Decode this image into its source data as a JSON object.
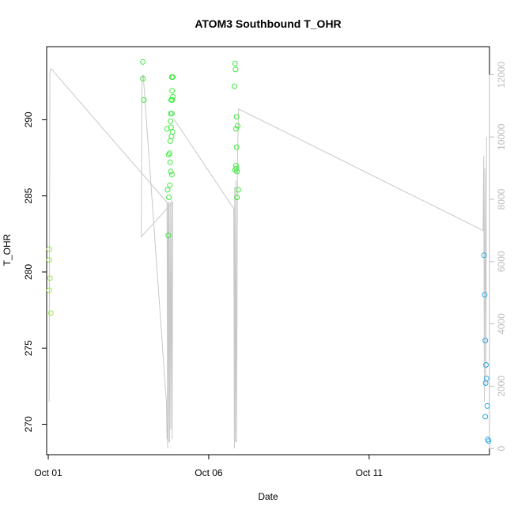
{
  "chart_data": {
    "type": "scatter",
    "title": "ATOM3 Southbound T_OHR",
    "xlabel": "Date",
    "ylabel": "T_OHR",
    "x_ticks": [
      "Oct 01",
      "Oct 06",
      "Oct 11"
    ],
    "x_tick_days": [
      1,
      6,
      11
    ],
    "xlim_days": [
      0.95,
      14.75
    ],
    "ylim": [
      268.0,
      294.8
    ],
    "y_ticks": [
      270,
      275,
      280,
      285,
      290
    ],
    "y2lim": [
      -200,
      12900
    ],
    "y2_ticks": [
      0,
      2000,
      4000,
      6000,
      8000,
      10000,
      12000
    ],
    "grid": false,
    "legend": "none",
    "colors": {
      "early": "#9be34a",
      "mid": "#3ee83e",
      "late": "#2aa9e6",
      "altitude_line": "#c8c8c8",
      "frame": "#000000"
    },
    "series": [
      {
        "values": [
          {
            "x": 1.03,
            "y": 281.5
          },
          {
            "x": 1.03,
            "y": 280.8
          },
          {
            "x": 1.05,
            "y": 279.6
          },
          {
            "x": 1.03,
            "y": 278.8
          },
          {
            "x": 1.08,
            "y": 277.3
          }
        ],
        "color": "early"
      },
      {
        "values": [
          {
            "x": 3.95,
            "y": 293.8
          },
          {
            "x": 3.95,
            "y": 292.7
          },
          {
            "x": 3.98,
            "y": 291.3
          },
          {
            "x": 4.7,
            "y": 289.4
          },
          {
            "x": 4.75,
            "y": 287.7
          },
          {
            "x": 4.8,
            "y": 287.2
          },
          {
            "x": 4.72,
            "y": 285.4
          },
          {
            "x": 4.76,
            "y": 284.9
          },
          {
            "x": 4.74,
            "y": 282.4
          },
          {
            "x": 4.85,
            "y": 292.8
          },
          {
            "x": 4.88,
            "y": 292.8
          },
          {
            "x": 4.86,
            "y": 291.9
          },
          {
            "x": 4.88,
            "y": 291.5
          },
          {
            "x": 4.83,
            "y": 291.3
          },
          {
            "x": 4.86,
            "y": 291.3
          },
          {
            "x": 4.82,
            "y": 290.4
          },
          {
            "x": 4.85,
            "y": 290.4
          },
          {
            "x": 4.81,
            "y": 289.9
          },
          {
            "x": 4.83,
            "y": 289.5
          },
          {
            "x": 4.87,
            "y": 289.2
          },
          {
            "x": 4.8,
            "y": 288.6
          },
          {
            "x": 4.84,
            "y": 288.9
          },
          {
            "x": 4.78,
            "y": 287.8
          },
          {
            "x": 4.82,
            "y": 286.6
          },
          {
            "x": 4.85,
            "y": 286.4
          },
          {
            "x": 4.79,
            "y": 285.7
          },
          {
            "x": 6.82,
            "y": 293.7
          },
          {
            "x": 6.84,
            "y": 293.3
          },
          {
            "x": 6.8,
            "y": 292.2
          },
          {
            "x": 6.87,
            "y": 290.2
          },
          {
            "x": 6.9,
            "y": 289.6
          },
          {
            "x": 6.85,
            "y": 289.4
          },
          {
            "x": 6.87,
            "y": 288.2
          },
          {
            "x": 6.82,
            "y": 286.7
          },
          {
            "x": 6.86,
            "y": 286.8
          },
          {
            "x": 6.88,
            "y": 286.6
          },
          {
            "x": 6.85,
            "y": 287.0
          },
          {
            "x": 6.92,
            "y": 285.4
          },
          {
            "x": 6.88,
            "y": 284.9
          }
        ],
        "color": "mid"
      },
      {
        "values": [
          {
            "x": 14.58,
            "y": 281.1
          },
          {
            "x": 14.6,
            "y": 278.5
          },
          {
            "x": 14.62,
            "y": 275.5
          },
          {
            "x": 14.64,
            "y": 273.9
          },
          {
            "x": 14.66,
            "y": 273.0
          },
          {
            "x": 14.63,
            "y": 272.7
          },
          {
            "x": 14.68,
            "y": 271.2
          },
          {
            "x": 14.62,
            "y": 270.5
          },
          {
            "x": 14.7,
            "y": 269.0
          },
          {
            "x": 14.72,
            "y": 268.9
          }
        ],
        "color": "late"
      }
    ],
    "altitude_line": [
      {
        "x": 1.03,
        "y": 1500
      },
      {
        "x": 1.05,
        "y": 12000
      },
      {
        "x": 1.08,
        "y": 12200
      },
      {
        "x": 4.7,
        "y": 7900
      },
      {
        "x": 4.72,
        "y": 0
      },
      {
        "x": 4.73,
        "y": 7900
      },
      {
        "x": 4.74,
        "y": 200
      },
      {
        "x": 4.76,
        "y": 7900
      },
      {
        "x": 4.78,
        "y": 200
      },
      {
        "x": 4.8,
        "y": 7900
      },
      {
        "x": 4.82,
        "y": 600
      },
      {
        "x": 4.84,
        "y": 8000
      },
      {
        "x": 4.86,
        "y": 300
      },
      {
        "x": 4.88,
        "y": 7900
      },
      {
        "x": 3.9,
        "y": 6800
      },
      {
        "x": 3.92,
        "y": 11800
      },
      {
        "x": 3.96,
        "y": 12000
      },
      {
        "x": 4.68,
        "y": 1500
      },
      {
        "x": 4.7,
        "y": 300
      }
    ],
    "altitude_line_b": [
      {
        "x": 4.9,
        "y": 10600
      },
      {
        "x": 6.78,
        "y": 7700
      },
      {
        "x": 6.8,
        "y": 0
      },
      {
        "x": 6.81,
        "y": 8400
      },
      {
        "x": 6.83,
        "y": 200
      },
      {
        "x": 6.85,
        "y": 8600
      },
      {
        "x": 6.87,
        "y": 200
      },
      {
        "x": 6.9,
        "y": 9400
      },
      {
        "x": 6.93,
        "y": 10900
      },
      {
        "x": 14.55,
        "y": 7000
      },
      {
        "x": 14.57,
        "y": 9400
      },
      {
        "x": 14.59,
        "y": 1500
      },
      {
        "x": 14.61,
        "y": 9000
      },
      {
        "x": 14.64,
        "y": 2000
      },
      {
        "x": 14.66,
        "y": 10000
      }
    ]
  }
}
